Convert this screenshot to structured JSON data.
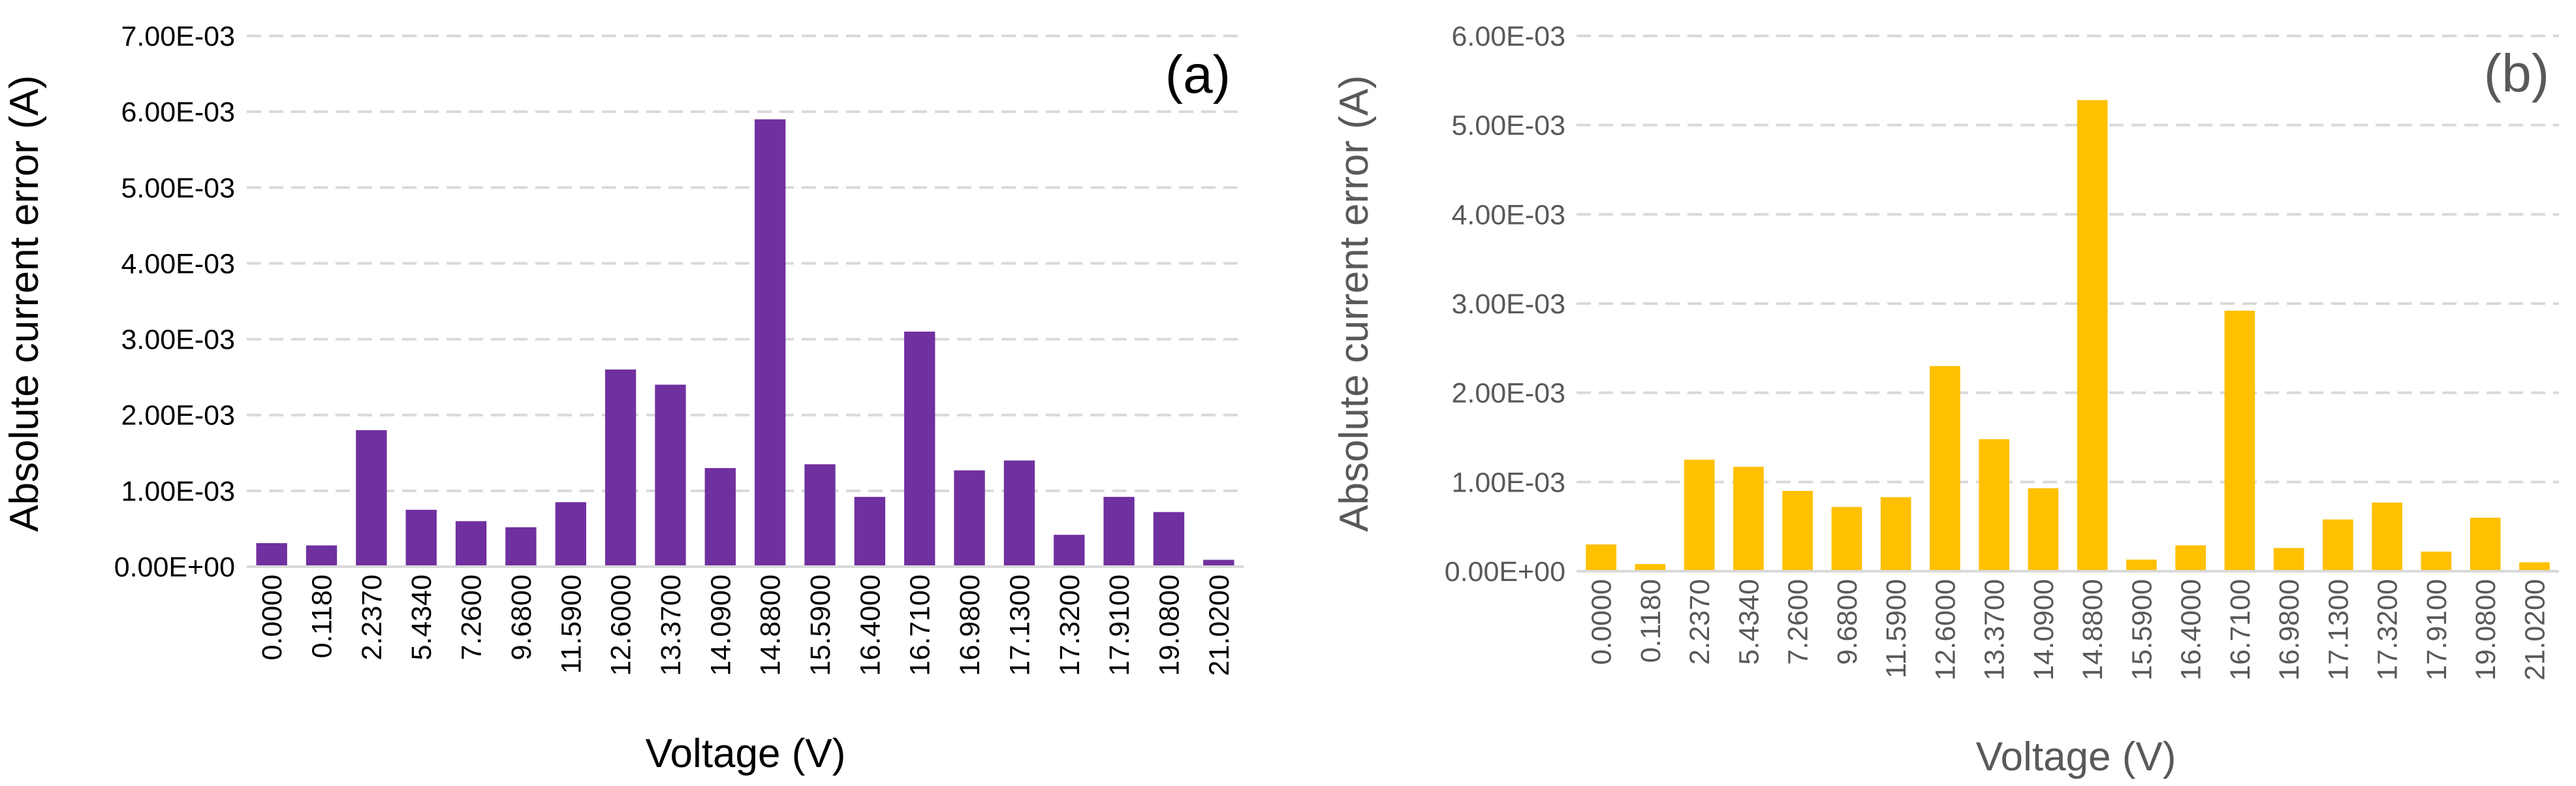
{
  "chart_data": [
    {
      "type": "bar",
      "panel_label": "(a)",
      "xlabel": "Voltage (V)",
      "ylabel": "Absolute current error (A)",
      "color": "#7030a0",
      "text_color": "#000000",
      "ylim": [
        0,
        0.007
      ],
      "yticks": [
        0,
        0.001,
        0.002,
        0.003,
        0.004,
        0.005,
        0.006,
        0.007
      ],
      "ytick_labels": [
        "0.00E+00",
        "1.00E-03",
        "2.00E-03",
        "3.00E-03",
        "4.00E-03",
        "5.00E-03",
        "6.00E-03",
        "7.00E-03"
      ],
      "grid": true,
      "categories": [
        "0.0000",
        "0.1180",
        "2.2370",
        "5.4340",
        "7.2600",
        "9.6800",
        "11.5900",
        "12.6000",
        "13.3700",
        "14.0900",
        "14.8800",
        "15.5900",
        "16.4000",
        "16.7100",
        "16.9800",
        "17.1300",
        "17.3200",
        "17.9100",
        "19.0800",
        "21.0200"
      ],
      "values": [
        0.00031,
        0.00028,
        0.0018,
        0.00075,
        0.0006,
        0.00052,
        0.00085,
        0.0026,
        0.0024,
        0.0013,
        0.0059,
        0.00135,
        0.00092,
        0.0031,
        0.00127,
        0.0014,
        0.00042,
        0.00092,
        0.00072,
        9e-05
      ]
    },
    {
      "type": "bar",
      "panel_label": "(b)",
      "xlabel": "Voltage (V)",
      "ylabel": "Absolute current error (A)",
      "color": "#ffc000",
      "text_color": "#595959",
      "ylim": [
        0,
        0.006
      ],
      "yticks": [
        0,
        0.001,
        0.002,
        0.003,
        0.004,
        0.005,
        0.006
      ],
      "ytick_labels": [
        "0.00E+00",
        "1.00E-03",
        "2.00E-03",
        "3.00E-03",
        "4.00E-03",
        "5.00E-03",
        "6.00E-03"
      ],
      "grid": true,
      "categories": [
        "0.0000",
        "0.1180",
        "2.2370",
        "5.4340",
        "7.2600",
        "9.6800",
        "11.5900",
        "12.6000",
        "13.3700",
        "14.0900",
        "14.8800",
        "15.5900",
        "16.4000",
        "16.7100",
        "16.9800",
        "17.1300",
        "17.3200",
        "17.9100",
        "19.0800",
        "21.0200"
      ],
      "values": [
        0.0003,
        8e-05,
        0.00125,
        0.00117,
        0.0009,
        0.00072,
        0.00083,
        0.0023,
        0.00148,
        0.00093,
        0.00528,
        0.00013,
        0.00029,
        0.00292,
        0.00026,
        0.00058,
        0.00077,
        0.00022,
        0.0006,
        0.0001
      ]
    }
  ]
}
